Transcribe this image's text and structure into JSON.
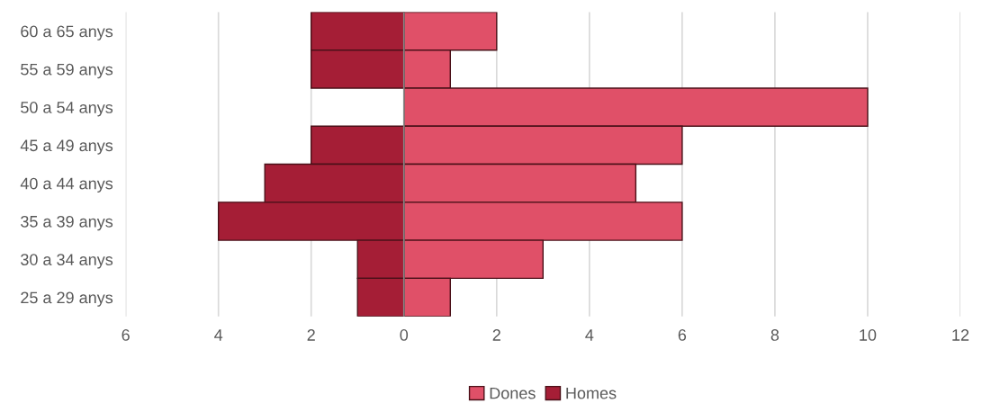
{
  "chart_data": {
    "type": "bar",
    "orientation": "horizontal",
    "categories": [
      "60 a 65 anys",
      "55 a 59 anys",
      "50 a 54 anys",
      "45 a 49 anys",
      "40 a 44 anys",
      "35 a 39 anys",
      "30 a 34 anys",
      "25 a 29 anys"
    ],
    "series": [
      {
        "name": "Dones",
        "color": "#e05068",
        "values": [
          2,
          1,
          10,
          6,
          5,
          6,
          3,
          1
        ]
      },
      {
        "name": "Homes",
        "color": "#a51e36",
        "values": [
          -2,
          -2,
          null,
          -2,
          -3,
          -4,
          -1,
          -1
        ]
      }
    ],
    "xlim": [
      -6,
      12
    ],
    "xticks": [
      {
        "value": -6,
        "label": "6"
      },
      {
        "value": -4,
        "label": "4"
      },
      {
        "value": -2,
        "label": "2"
      },
      0,
      2,
      4,
      6,
      8,
      10,
      12
    ],
    "stacked": true,
    "grid": "x",
    "legend": "bottom"
  }
}
